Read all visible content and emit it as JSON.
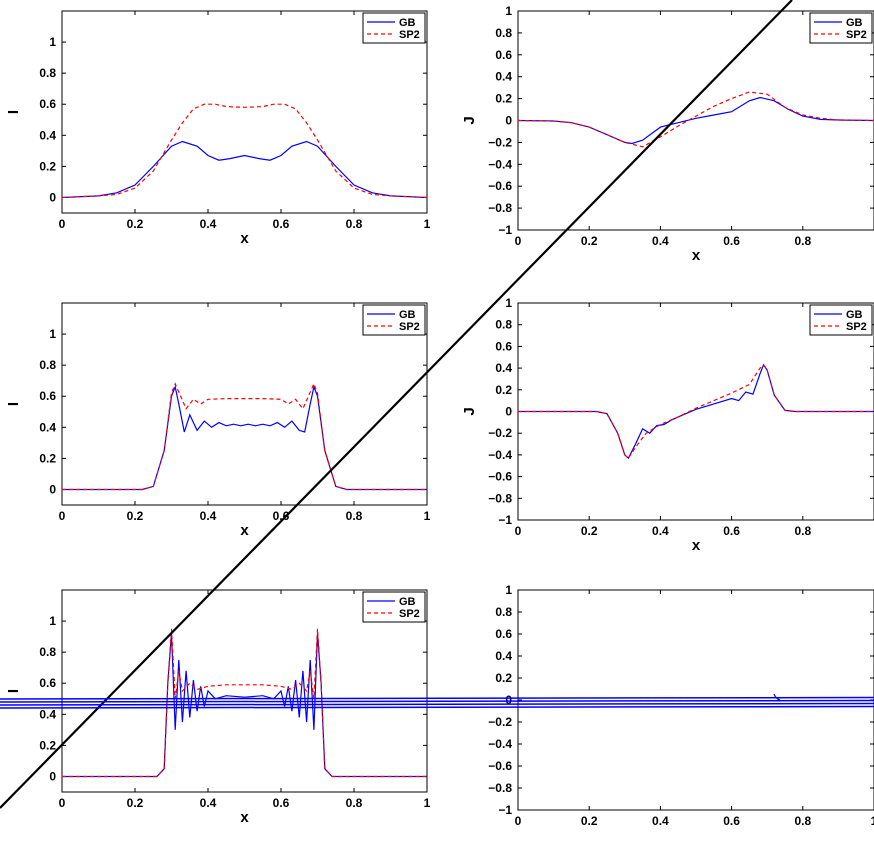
{
  "chart_data": [
    {
      "type": "line",
      "xlabel": "x",
      "ylabel": "I",
      "xlim": [
        0,
        1
      ],
      "ylim": [
        -0.1,
        1.2
      ],
      "xticks": [
        "0",
        "0.2",
        "0.4",
        "0.6",
        "0.8",
        "1"
      ],
      "yticks": [
        "0",
        "0.2",
        "0.4",
        "0.6",
        "0.8",
        "1"
      ],
      "legend": {
        "position": "top-right",
        "entries": [
          "GB",
          "SP2"
        ]
      },
      "series": [
        {
          "name": "GB",
          "color": "#0000ff",
          "style": "solid",
          "x": [
            0,
            0.1,
            0.15,
            0.2,
            0.25,
            0.3,
            0.33,
            0.37,
            0.4,
            0.43,
            0.46,
            0.5,
            0.54,
            0.57,
            0.6,
            0.63,
            0.67,
            0.7,
            0.75,
            0.8,
            0.85,
            0.9,
            1
          ],
          "y": [
            0,
            0.01,
            0.03,
            0.08,
            0.2,
            0.33,
            0.36,
            0.33,
            0.27,
            0.24,
            0.25,
            0.27,
            0.25,
            0.24,
            0.27,
            0.33,
            0.36,
            0.33,
            0.2,
            0.08,
            0.03,
            0.01,
            0
          ]
        },
        {
          "name": "SP2",
          "color": "#ff0000",
          "style": "dashed",
          "x": [
            0,
            0.1,
            0.15,
            0.2,
            0.25,
            0.3,
            0.33,
            0.36,
            0.39,
            0.42,
            0.45,
            0.5,
            0.55,
            0.58,
            0.61,
            0.64,
            0.67,
            0.7,
            0.75,
            0.8,
            0.85,
            0.9,
            1
          ],
          "y": [
            0,
            0.01,
            0.02,
            0.06,
            0.17,
            0.37,
            0.48,
            0.57,
            0.6,
            0.6,
            0.585,
            0.58,
            0.585,
            0.6,
            0.6,
            0.57,
            0.48,
            0.37,
            0.17,
            0.06,
            0.02,
            0.01,
            0
          ]
        }
      ]
    },
    {
      "type": "line",
      "xlabel": "x",
      "ylabel": "J",
      "xlim": [
        0,
        1
      ],
      "ylim": [
        -1,
        1
      ],
      "xticks": [
        "0",
        "0.2",
        "0.4",
        "0.6",
        "0.8"
      ],
      "yticks": [
        "−1",
        "−0.8",
        "−0.6",
        "−0.4",
        "−0.2",
        "0",
        "0.2",
        "0.4",
        "0.6",
        "0.8",
        "1"
      ],
      "legend": {
        "position": "top-right",
        "entries": [
          "GB",
          "SP2"
        ]
      },
      "series": [
        {
          "name": "GB",
          "color": "#0000ff",
          "style": "solid",
          "x": [
            0,
            0.1,
            0.15,
            0.2,
            0.25,
            0.3,
            0.32,
            0.35,
            0.4,
            0.45,
            0.5,
            0.55,
            0.6,
            0.65,
            0.68,
            0.72,
            0.76,
            0.8,
            0.85,
            0.9,
            1
          ],
          "y": [
            0,
            -0.005,
            -0.02,
            -0.06,
            -0.13,
            -0.2,
            -0.21,
            -0.18,
            -0.06,
            -0.02,
            0.02,
            0.05,
            0.08,
            0.18,
            0.21,
            0.18,
            0.1,
            0.04,
            0.01,
            0.005,
            0
          ]
        },
        {
          "name": "SP2",
          "color": "#ff0000",
          "style": "dashed",
          "x": [
            0,
            0.1,
            0.15,
            0.2,
            0.25,
            0.3,
            0.35,
            0.4,
            0.45,
            0.5,
            0.55,
            0.6,
            0.65,
            0.7,
            0.75,
            0.8,
            0.85,
            0.9,
            1
          ],
          "y": [
            0,
            -0.005,
            -0.02,
            -0.06,
            -0.13,
            -0.2,
            -0.24,
            -0.15,
            -0.05,
            0.04,
            0.13,
            0.2,
            0.26,
            0.24,
            0.12,
            0.05,
            0.02,
            0.005,
            0
          ]
        }
      ]
    },
    {
      "type": "line",
      "xlabel": "x",
      "ylabel": "I",
      "xlim": [
        0,
        1
      ],
      "ylim": [
        -0.1,
        1.2
      ],
      "xticks": [
        "0",
        "0.2",
        "0.4",
        "0.6",
        "0.8",
        "1"
      ],
      "yticks": [
        "0",
        "0.2",
        "0.4",
        "0.6",
        "0.8",
        "1"
      ],
      "legend": {
        "position": "top-right",
        "entries": [
          "GB",
          "SP2"
        ]
      },
      "series": [
        {
          "name": "GB",
          "color": "#0000ff",
          "style": "solid",
          "x": [
            0,
            0.22,
            0.25,
            0.28,
            0.3,
            0.31,
            0.32,
            0.335,
            0.35,
            0.37,
            0.39,
            0.41,
            0.43,
            0.45,
            0.47,
            0.49,
            0.51,
            0.53,
            0.55,
            0.57,
            0.59,
            0.61,
            0.63,
            0.65,
            0.665,
            0.68,
            0.69,
            0.7,
            0.72,
            0.75,
            0.78,
            1
          ],
          "y": [
            0,
            0,
            0.02,
            0.25,
            0.6,
            0.66,
            0.55,
            0.37,
            0.48,
            0.38,
            0.44,
            0.4,
            0.43,
            0.41,
            0.42,
            0.41,
            0.42,
            0.41,
            0.42,
            0.41,
            0.43,
            0.4,
            0.44,
            0.38,
            0.37,
            0.55,
            0.66,
            0.6,
            0.25,
            0.02,
            0,
            0
          ]
        },
        {
          "name": "SP2",
          "color": "#ff0000",
          "style": "dashed",
          "x": [
            0,
            0.22,
            0.25,
            0.28,
            0.3,
            0.31,
            0.325,
            0.34,
            0.36,
            0.38,
            0.4,
            0.45,
            0.5,
            0.55,
            0.6,
            0.62,
            0.64,
            0.66,
            0.675,
            0.69,
            0.7,
            0.72,
            0.75,
            0.78,
            1
          ],
          "y": [
            0,
            0,
            0.02,
            0.25,
            0.62,
            0.68,
            0.6,
            0.52,
            0.58,
            0.55,
            0.58,
            0.585,
            0.585,
            0.585,
            0.58,
            0.55,
            0.58,
            0.52,
            0.6,
            0.68,
            0.62,
            0.25,
            0.02,
            0,
            0
          ]
        }
      ]
    },
    {
      "type": "line",
      "xlabel": "x",
      "ylabel": "J",
      "xlim": [
        0,
        1
      ],
      "ylim": [
        -1,
        1
      ],
      "xticks": [
        "0",
        "0.2",
        "0.4",
        "0.6",
        "0.8"
      ],
      "yticks": [
        "−1",
        "−0.8",
        "−0.6",
        "−0.4",
        "−0.2",
        "0",
        "0.2",
        "0.4",
        "0.6",
        "0.8",
        "1"
      ],
      "legend": {
        "position": "top-right",
        "entries": [
          "GB",
          "SP2"
        ]
      },
      "series": [
        {
          "name": "GB",
          "color": "#0000ff",
          "style": "solid",
          "x": [
            0,
            0.22,
            0.25,
            0.28,
            0.3,
            0.31,
            0.33,
            0.35,
            0.37,
            0.39,
            0.41,
            0.43,
            0.45,
            0.5,
            0.55,
            0.6,
            0.62,
            0.64,
            0.66,
            0.68,
            0.69,
            0.7,
            0.72,
            0.75,
            0.78,
            1
          ],
          "y": [
            0,
            0,
            -0.02,
            -0.2,
            -0.4,
            -0.43,
            -0.3,
            -0.16,
            -0.2,
            -0.13,
            -0.12,
            -0.08,
            -0.05,
            0.02,
            0.07,
            0.12,
            0.1,
            0.18,
            0.16,
            0.35,
            0.43,
            0.38,
            0.15,
            0.01,
            0,
            0
          ]
        },
        {
          "name": "SP2",
          "color": "#ff0000",
          "style": "dashed",
          "x": [
            0,
            0.22,
            0.25,
            0.28,
            0.3,
            0.31,
            0.33,
            0.36,
            0.4,
            0.45,
            0.5,
            0.55,
            0.6,
            0.65,
            0.68,
            0.69,
            0.7,
            0.72,
            0.75,
            0.78,
            1
          ],
          "y": [
            0,
            0,
            -0.02,
            -0.2,
            -0.4,
            -0.43,
            -0.33,
            -0.2,
            -0.12,
            -0.05,
            0.03,
            0.1,
            0.17,
            0.25,
            0.4,
            0.43,
            0.38,
            0.15,
            0.01,
            0,
            0
          ]
        }
      ]
    },
    {
      "type": "line",
      "xlabel": "x",
      "ylabel": "I",
      "xlim": [
        0,
        1
      ],
      "ylim": [
        -0.1,
        1.2
      ],
      "xticks": [
        "0",
        "0.2",
        "0.4",
        "0.6",
        "0.8",
        "1"
      ],
      "yticks": [
        "0",
        "0.2",
        "0.4",
        "0.6",
        "0.8",
        "1"
      ],
      "legend": {
        "position": "top-right",
        "entries": [
          "GB",
          "SP2"
        ]
      },
      "series": [
        {
          "name": "GB",
          "color": "#0000ff",
          "style": "solid",
          "x": [
            0,
            0.26,
            0.28,
            0.29,
            0.3,
            0.31,
            0.32,
            0.33,
            0.34,
            0.35,
            0.36,
            0.37,
            0.38,
            0.39,
            0.4,
            0.42,
            0.45,
            0.5,
            0.55,
            0.58,
            0.6,
            0.61,
            0.62,
            0.63,
            0.64,
            0.65,
            0.66,
            0.67,
            0.68,
            0.69,
            0.7,
            0.71,
            0.72,
            0.74,
            1
          ],
          "y": [
            0,
            0,
            0.05,
            0.6,
            0.92,
            0.3,
            0.75,
            0.35,
            0.68,
            0.38,
            0.62,
            0.42,
            0.58,
            0.45,
            0.55,
            0.5,
            0.52,
            0.51,
            0.52,
            0.5,
            0.55,
            0.45,
            0.58,
            0.42,
            0.62,
            0.38,
            0.68,
            0.35,
            0.75,
            0.3,
            0.92,
            0.6,
            0.05,
            0,
            0
          ]
        },
        {
          "name": "SP2",
          "color": "#ff0000",
          "style": "dashed",
          "x": [
            0,
            0.26,
            0.28,
            0.29,
            0.3,
            0.31,
            0.32,
            0.33,
            0.35,
            0.37,
            0.4,
            0.45,
            0.5,
            0.55,
            0.6,
            0.63,
            0.65,
            0.67,
            0.68,
            0.69,
            0.7,
            0.71,
            0.72,
            0.74,
            1
          ],
          "y": [
            0,
            0,
            0.05,
            0.6,
            0.95,
            0.5,
            0.68,
            0.55,
            0.6,
            0.56,
            0.58,
            0.59,
            0.59,
            0.59,
            0.58,
            0.56,
            0.6,
            0.55,
            0.68,
            0.5,
            0.95,
            0.6,
            0.05,
            0,
            0
          ]
        }
      ]
    },
    {
      "type": "line",
      "xlabel": "",
      "ylabel": "",
      "xlim": [
        0,
        1
      ],
      "ylim": [
        -1,
        1
      ],
      "xticks": [
        "0",
        "0.2",
        "0.4",
        "0.6",
        "0.8",
        "1"
      ],
      "yticks": [
        "−1",
        "−0.8",
        "−0.6",
        "−0.4",
        "−0.2",
        "0",
        "0.2",
        "0.4",
        "0.6",
        "0.8",
        "1"
      ],
      "series": []
    }
  ],
  "overlay": {
    "diagonal_color": "#000000",
    "stray_lines_color": "#0000ff"
  }
}
